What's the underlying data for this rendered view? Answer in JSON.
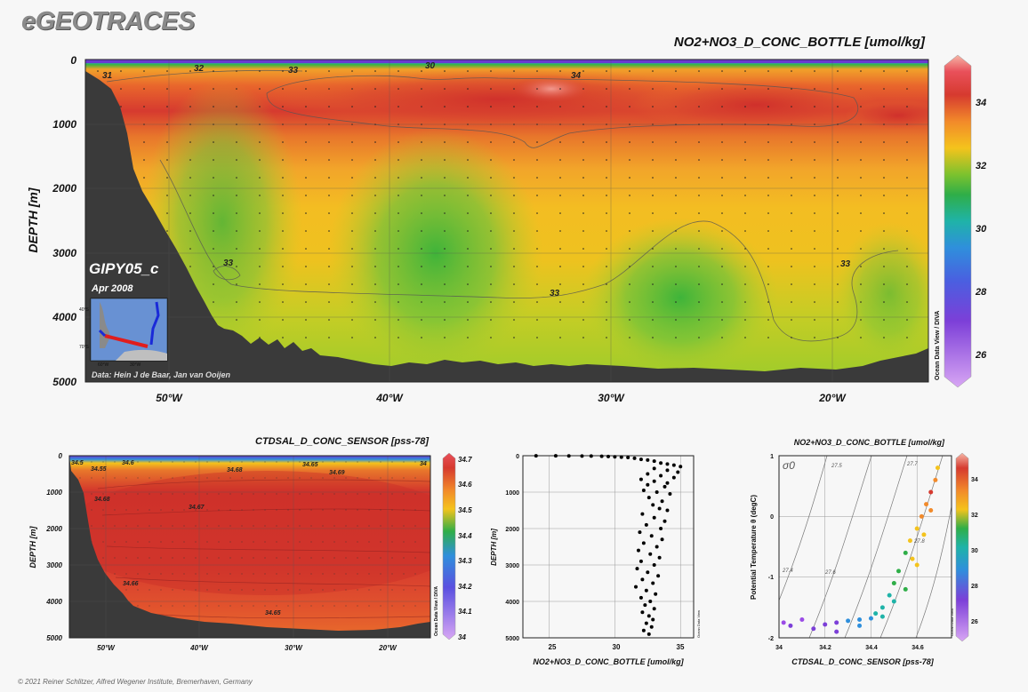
{
  "header": {
    "logo": "eGEOTRACES"
  },
  "footer": {
    "credit": "© 2021 Reiner Schlitzer, Alfred Wegener Institute, Bremerhaven, Germany"
  },
  "colors": {
    "background": "#f7f7f7",
    "seafloor": "#3a3a3a",
    "red": "#d63a2f",
    "orange": "#f1a12a",
    "yellow": "#f4c31c",
    "green": "#3bb53f",
    "blue": "#2f8fdc",
    "purple": "#9b4ce6"
  },
  "main_section": {
    "title": "NO2+NO3_D_CONC_BOTTLE [umol/kg]",
    "ylabel": "DEPTH [m]",
    "yticks": [
      "0",
      "1000",
      "2000",
      "3000",
      "4000",
      "5000"
    ],
    "xticks": [
      "50°W",
      "40°W",
      "30°W",
      "20°W"
    ],
    "colorbar_ticks": [
      "34",
      "32",
      "30",
      "28",
      "26"
    ],
    "side_credit": "Ocean Data View / DIVA",
    "cruise": "GIPY05_c",
    "date": "Apr 2008",
    "data_credit": "Data: Hein J de Baar, Jan van Ooijen",
    "map_labels": [
      "40°S",
      "70°S",
      "60°W",
      "30°W"
    ],
    "contour_labels": [
      "31",
      "32",
      "33",
      "30",
      "34",
      "33",
      "33",
      "33"
    ]
  },
  "sal_section": {
    "title": "CTDSAL_D_CONC_SENSOR [pss-78]",
    "ylabel": "DEPTH [m]",
    "yticks": [
      "0",
      "1000",
      "2000",
      "3000",
      "4000",
      "5000"
    ],
    "xticks": [
      "50°W",
      "40°W",
      "30°W",
      "20°W"
    ],
    "colorbar_ticks": [
      "34.7",
      "34.6",
      "34.5",
      "34.4",
      "34.3",
      "34.2",
      "34.1",
      "34"
    ],
    "side_credit": "Ocean Data View / DIVA",
    "contour_labels": [
      "34.5",
      "34.55",
      "34.6",
      "34.68",
      "34.65",
      "34.69",
      "34",
      "34.68",
      "34.67",
      "34.66",
      "34.65"
    ]
  },
  "chart_data": [
    {
      "type": "heatmap",
      "title": "NO2+NO3_D_CONC_BOTTLE [umol/kg]",
      "xlabel": "",
      "ylabel": "DEPTH [m]",
      "xlim": [
        -54.5,
        -13.5
      ],
      "ylim": [
        5000,
        0
      ],
      "colorbar_range": [
        25,
        35
      ],
      "features": [
        {
          "name": "surface minimum",
          "value": 30,
          "depth": 0
        },
        {
          "name": "intermediate maximum",
          "value": 34.5,
          "depth": 700,
          "lon": -33
        },
        {
          "name": "deep minimum",
          "value": 32.3,
          "depth": 4000,
          "lon": -38
        },
        {
          "name": "deep minimum",
          "value": 32.4,
          "depth": 3700,
          "lon": -26
        }
      ]
    },
    {
      "type": "heatmap",
      "title": "CTDSAL_D_CONC_SENSOR [pss-78]",
      "xlabel": "",
      "ylabel": "DEPTH [m]",
      "xlim": [
        -54.5,
        -13.5
      ],
      "ylim": [
        5000,
        0
      ],
      "colorbar_range": [
        34,
        34.7
      ],
      "features": [
        {
          "name": "core",
          "value": 34.69,
          "depth": 500
        },
        {
          "name": "deep",
          "value": 34.65,
          "depth": 4400
        }
      ]
    },
    {
      "type": "scatter",
      "title": "",
      "xlabel": "NO2+NO3_D_CONC_BOTTLE [umol/kg]",
      "ylabel": "DEPTH [m]",
      "xticks": [
        "25",
        "30",
        "35"
      ],
      "yticks": [
        "0",
        "1000",
        "2000",
        "3000",
        "4000",
        "5000"
      ],
      "xlim": [
        23,
        36
      ],
      "ylim": [
        5000,
        0
      ],
      "side_credit": "Ocean Data View",
      "points": [
        [
          24,
          2
        ],
        [
          25.5,
          3
        ],
        [
          26.5,
          5
        ],
        [
          27.5,
          8
        ],
        [
          28.2,
          10
        ],
        [
          29,
          15
        ],
        [
          29.5,
          20
        ],
        [
          30,
          30
        ],
        [
          30.5,
          40
        ],
        [
          31,
          50
        ],
        [
          31.5,
          70
        ],
        [
          32,
          100
        ],
        [
          32.5,
          120
        ],
        [
          33,
          150
        ],
        [
          33.5,
          200
        ],
        [
          34,
          230
        ],
        [
          34.5,
          260
        ],
        [
          35,
          300
        ],
        [
          33,
          350
        ],
        [
          34,
          400
        ],
        [
          34.8,
          450
        ],
        [
          32.5,
          500
        ],
        [
          33.5,
          550
        ],
        [
          34.5,
          600
        ],
        [
          32,
          650
        ],
        [
          33,
          700
        ],
        [
          34,
          750
        ],
        [
          32.5,
          800
        ],
        [
          33.8,
          850
        ],
        [
          32.2,
          950
        ],
        [
          33.2,
          1000
        ],
        [
          34.2,
          1050
        ],
        [
          32.6,
          1150
        ],
        [
          33.6,
          1250
        ],
        [
          32.9,
          1350
        ],
        [
          33.4,
          1450
        ],
        [
          34,
          1500
        ],
        [
          32.1,
          1600
        ],
        [
          33,
          1700
        ],
        [
          33.8,
          1800
        ],
        [
          32.4,
          1900
        ],
        [
          33.5,
          2000
        ],
        [
          31.9,
          2100
        ],
        [
          32.8,
          2200
        ],
        [
          33.6,
          2300
        ],
        [
          32.2,
          2400
        ],
        [
          33.2,
          2500
        ],
        [
          31.8,
          2600
        ],
        [
          32.7,
          2700
        ],
        [
          33.4,
          2800
        ],
        [
          32,
          2900
        ],
        [
          33,
          3000
        ],
        [
          31.7,
          3100
        ],
        [
          32.5,
          3200
        ],
        [
          33.3,
          3300
        ],
        [
          32.1,
          3400
        ],
        [
          32.9,
          3500
        ],
        [
          31.6,
          3600
        ],
        [
          32.4,
          3700
        ],
        [
          33.1,
          3800
        ],
        [
          32,
          3900
        ],
        [
          32.7,
          4000
        ],
        [
          32.3,
          4100
        ],
        [
          33,
          4200
        ],
        [
          32.1,
          4300
        ],
        [
          32.6,
          4400
        ],
        [
          32.9,
          4500
        ],
        [
          32.4,
          4600
        ],
        [
          32.8,
          4700
        ],
        [
          32.2,
          4800
        ],
        [
          32.6,
          4900
        ]
      ]
    },
    {
      "type": "scatter",
      "title": "NO2+NO3_D_CONC_BOTTLE [umol/kg]",
      "xlabel": "CTDSAL_D_CONC_SENSOR [pss-78]",
      "ylabel": "Potential Temperature θ (degC)",
      "xticks": [
        "34",
        "34.2",
        "34.4",
        "34.6"
      ],
      "yticks": [
        "1",
        "0",
        "-1",
        "-2"
      ],
      "xlim": [
        34,
        34.75
      ],
      "ylim": [
        -2,
        1
      ],
      "isopycnal_label": "σ0",
      "isopycnals": [
        "27.4",
        "27.5",
        "27.6",
        "27.7",
        "27.8"
      ],
      "colorbar_ticks": [
        "34",
        "32",
        "30",
        "28",
        "26"
      ],
      "side_credit": "Ocean Data View",
      "points": [
        [
          34.02,
          -1.75,
          27.5
        ],
        [
          34.05,
          -1.8,
          28
        ],
        [
          34.1,
          -1.7,
          27
        ],
        [
          34.15,
          -1.85,
          28.5
        ],
        [
          34.2,
          -1.78,
          29
        ],
        [
          34.25,
          -1.75,
          29.5
        ],
        [
          34.3,
          -1.72,
          30
        ],
        [
          34.35,
          -1.7,
          30
        ],
        [
          34.4,
          -1.68,
          30.5
        ],
        [
          34.42,
          -1.6,
          31
        ],
        [
          34.45,
          -1.5,
          31
        ],
        [
          34.48,
          -1.3,
          31.5
        ],
        [
          34.5,
          -1.1,
          32
        ],
        [
          34.52,
          -0.9,
          32
        ],
        [
          34.55,
          -0.6,
          32.5
        ],
        [
          34.57,
          -0.4,
          33
        ],
        [
          34.6,
          -0.2,
          33.5
        ],
        [
          34.62,
          0,
          34
        ],
        [
          34.64,
          0.2,
          34.2
        ],
        [
          34.66,
          0.4,
          34.5
        ],
        [
          34.68,
          0.6,
          34.3
        ],
        [
          34.69,
          0.8,
          33.8
        ],
        [
          34.6,
          -0.8,
          33
        ],
        [
          34.55,
          -1.2,
          32
        ],
        [
          34.5,
          -1.4,
          31.5
        ],
        [
          34.45,
          -1.65,
          31
        ],
        [
          34.35,
          -1.8,
          30
        ],
        [
          34.25,
          -1.9,
          29
        ],
        [
          34.58,
          -0.7,
          33
        ],
        [
          34.63,
          -0.3,
          33.5
        ],
        [
          34.66,
          0.1,
          34
        ]
      ]
    }
  ]
}
